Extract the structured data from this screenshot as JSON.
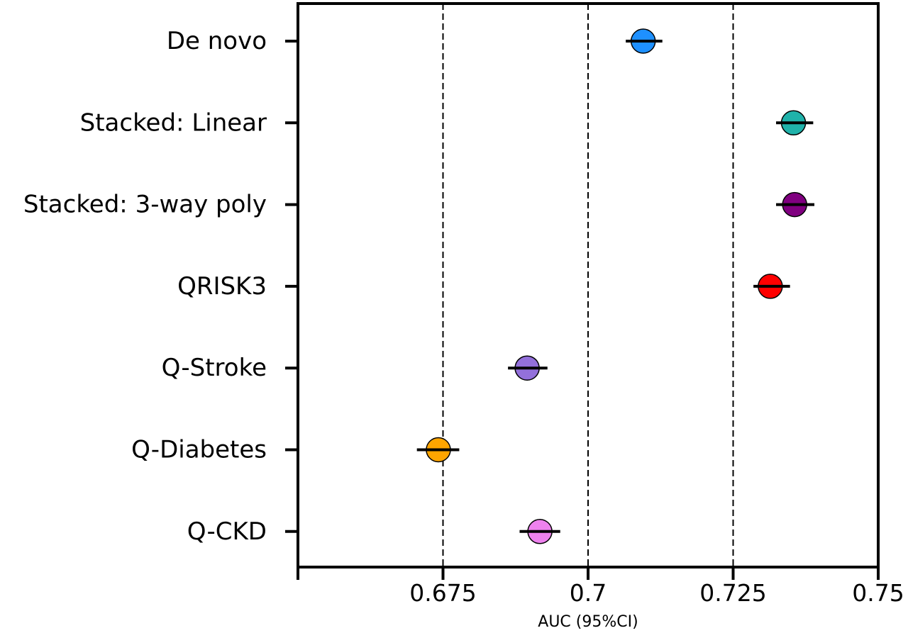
{
  "chart_data": {
    "type": "scatter",
    "title": "",
    "xlabel": "AUC (95%CI)",
    "ylabel": "",
    "xlim": [
      0.65,
      0.75
    ],
    "x_ticks": [
      0.675,
      0.7,
      0.725,
      0.75
    ],
    "x_tick_labels": [
      "0.675",
      "0.7",
      "0.725",
      "0.75"
    ],
    "reference_lines": [
      0.675,
      0.7,
      0.725
    ],
    "grid": false,
    "categories": [
      "De novo",
      "Stacked: Linear",
      "Stacked: 3-way poly",
      "QRISK3",
      "Q-Stroke",
      "Q-Diabetes",
      "Q-CKD"
    ],
    "points": [
      {
        "label": "De novo",
        "auc": 0.7095,
        "ci_low": 0.7065,
        "ci_high": 0.7128,
        "color": "#1e90ff"
      },
      {
        "label": "Stacked: Linear",
        "auc": 0.7354,
        "ci_low": 0.7324,
        "ci_high": 0.7388,
        "color": "#20b2aa"
      },
      {
        "label": "Stacked: 3-way poly",
        "auc": 0.7356,
        "ci_low": 0.7324,
        "ci_high": 0.739,
        "color": "#800080"
      },
      {
        "label": "QRISK3",
        "auc": 0.7314,
        "ci_low": 0.7285,
        "ci_high": 0.7348,
        "color": "#ff0000"
      },
      {
        "label": "Q-Stroke",
        "auc": 0.6895,
        "ci_low": 0.6862,
        "ci_high": 0.693,
        "color": "#9370db"
      },
      {
        "label": "Q-Diabetes",
        "auc": 0.6742,
        "ci_low": 0.6705,
        "ci_high": 0.6778,
        "color": "#ffa500"
      },
      {
        "label": "Q-CKD",
        "auc": 0.6917,
        "ci_low": 0.6882,
        "ci_high": 0.6952,
        "color": "#ee82ee"
      }
    ]
  }
}
